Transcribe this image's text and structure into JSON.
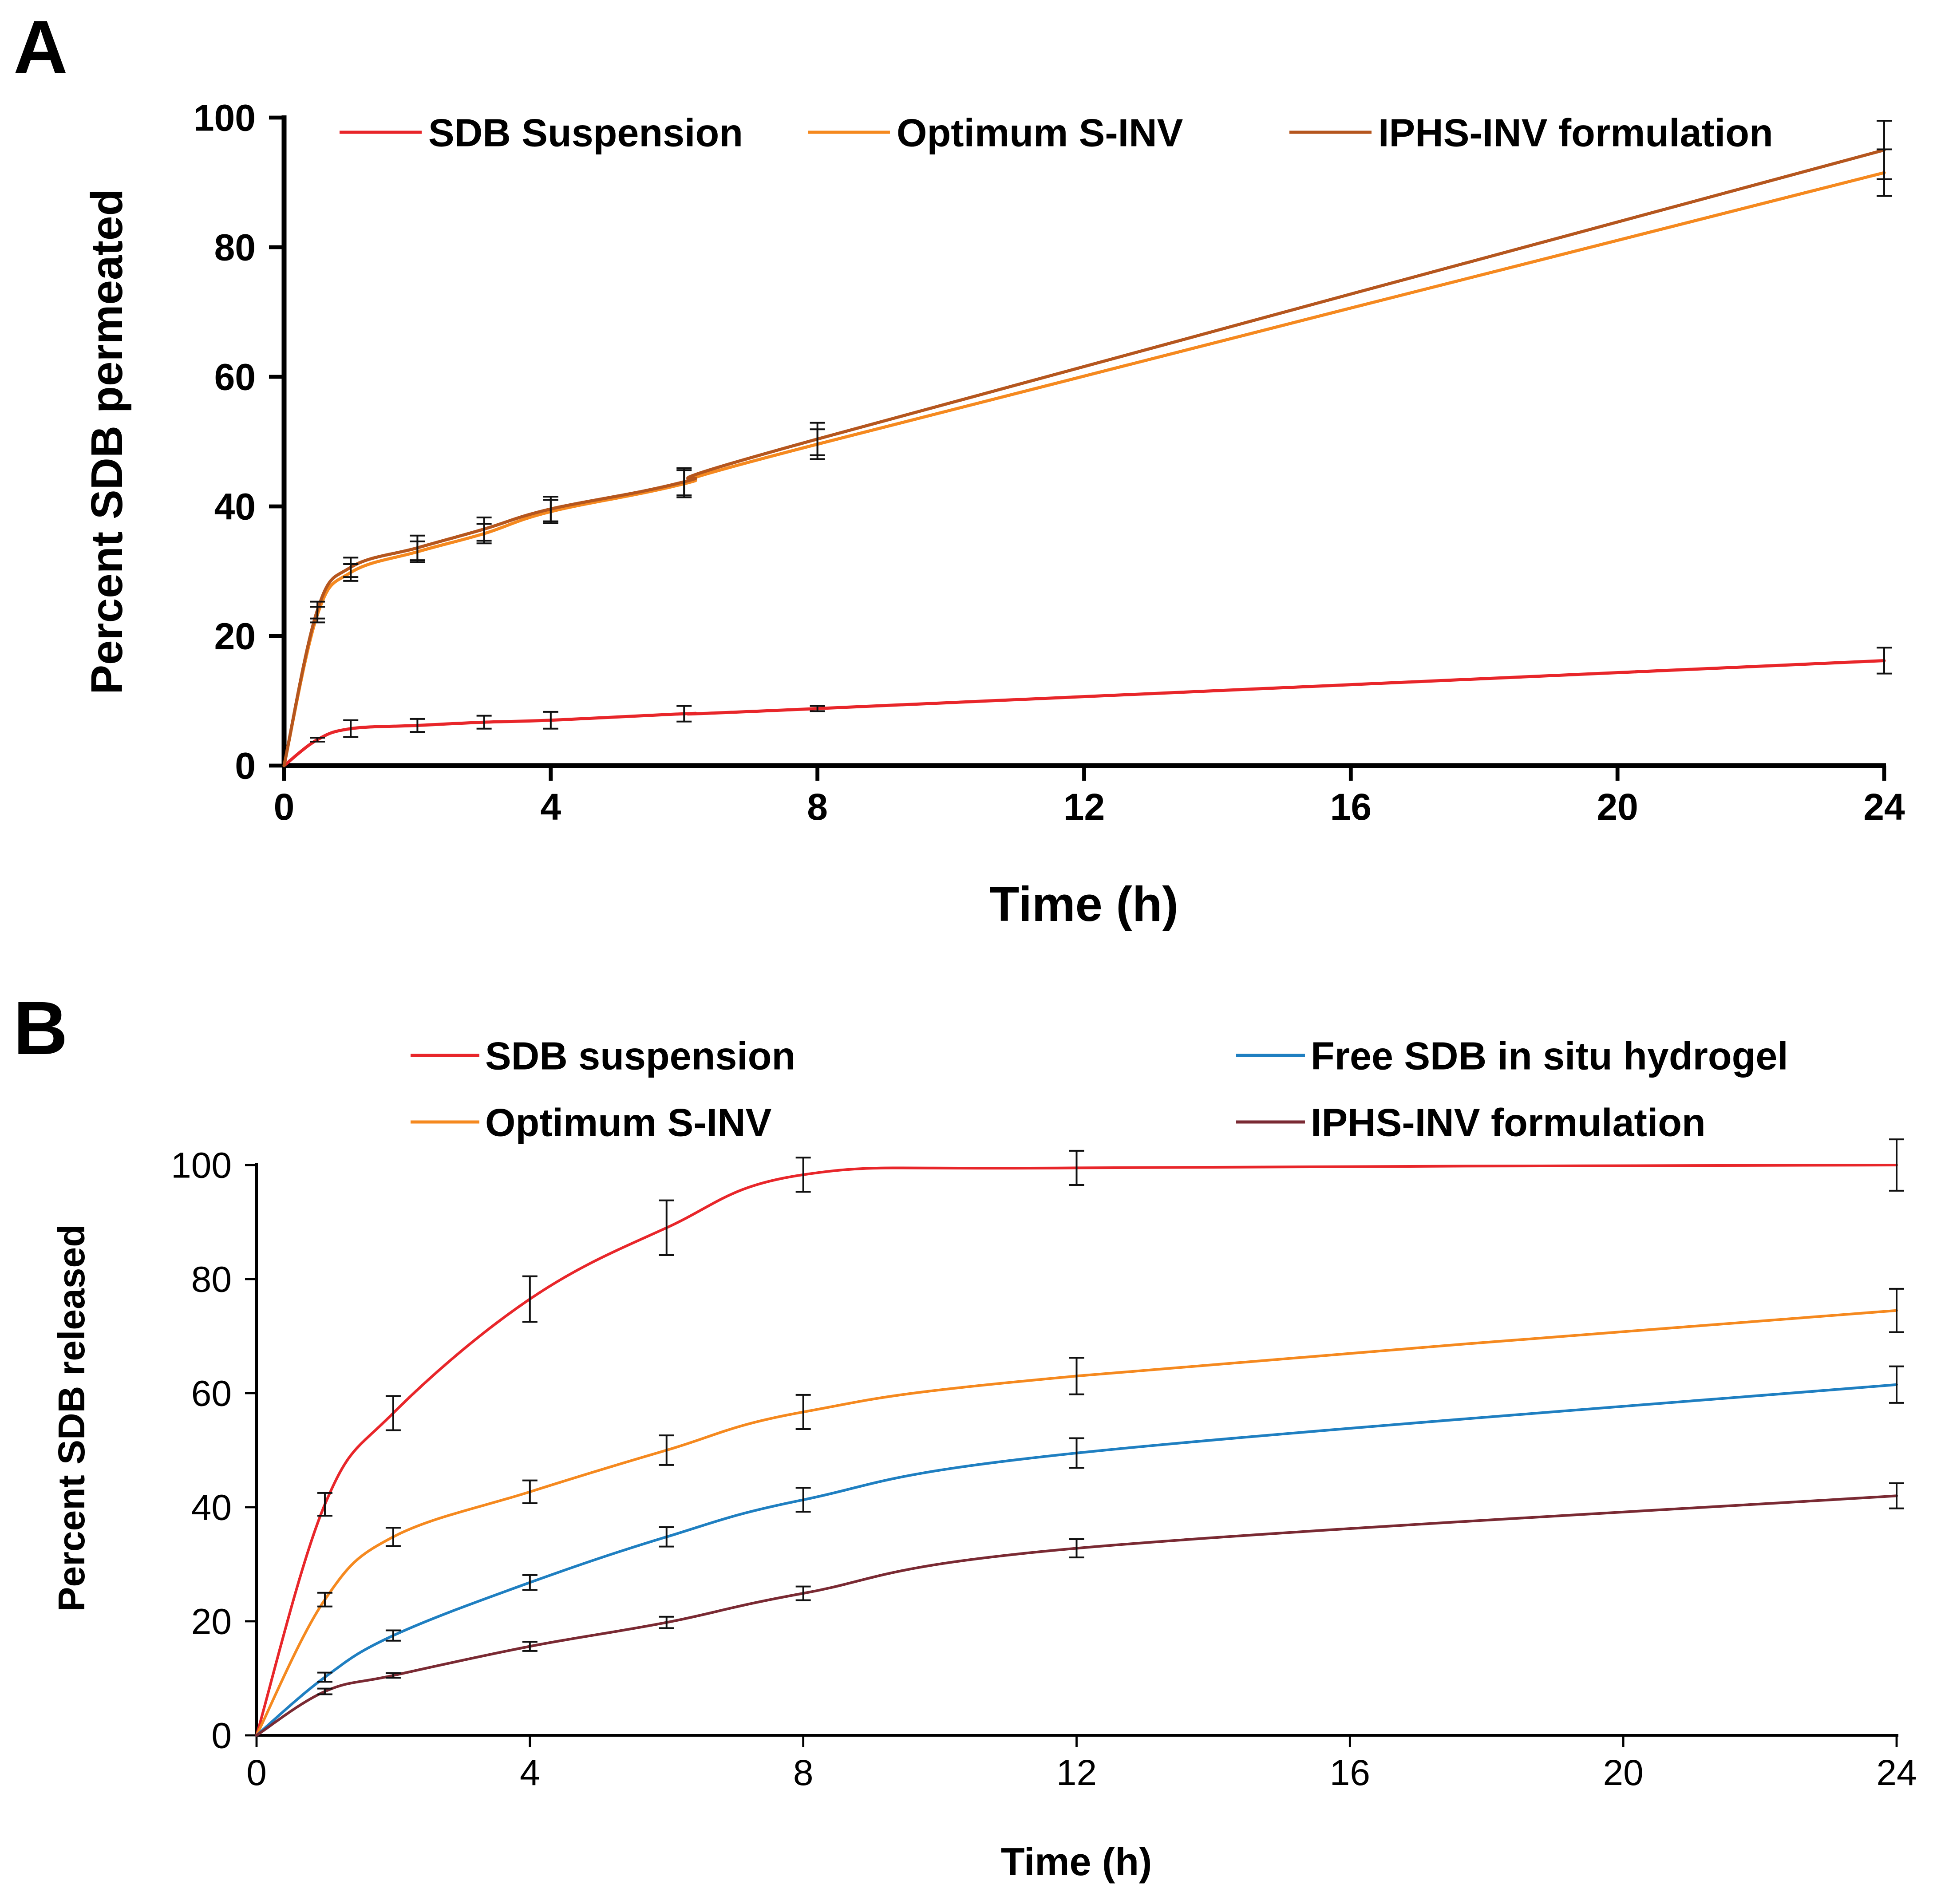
{
  "chart_data": [
    {
      "panel_label": "A",
      "type": "line",
      "title": "",
      "xlabel": "Time (h)",
      "ylabel": "Percent SDB permeated",
      "xlim": [
        0,
        24
      ],
      "ylim": [
        0,
        100
      ],
      "xticks": [
        0,
        4,
        8,
        12,
        16,
        20,
        24
      ],
      "yticks": [
        0,
        20,
        40,
        60,
        80,
        100
      ],
      "grid": false,
      "legend_position": "top",
      "series": [
        {
          "name": "SDB Suspension",
          "color": "#e8262a",
          "x": [
            0,
            0.5,
            1,
            2,
            3,
            4,
            6,
            8,
            24
          ],
          "y": [
            0,
            4.0,
            5.7,
            6.2,
            6.7,
            7.0,
            8.0,
            8.8,
            16.2
          ],
          "err": [
            0,
            0.3,
            1.3,
            1.0,
            1.0,
            1.3,
            1.2,
            0.4,
            2.0
          ]
        },
        {
          "name": "Optimum S-INV",
          "color": "#f5891f",
          "x": [
            0,
            0.5,
            1,
            2,
            3,
            4,
            6,
            8,
            24
          ],
          "y": [
            0,
            23.3,
            29.8,
            33.0,
            35.8,
            39.2,
            43.5,
            49.6,
            91.5
          ],
          "err": [
            0,
            1.2,
            1.3,
            1.6,
            1.5,
            1.8,
            2.1,
            2.3,
            3.6
          ]
        },
        {
          "name": "IPHS-INV formulation",
          "color": "#b5561e",
          "x": [
            0,
            0.5,
            1,
            2,
            3,
            4,
            6,
            8,
            24
          ],
          "y": [
            0,
            24.0,
            30.6,
            33.6,
            36.5,
            39.6,
            43.8,
            50.4,
            95.0
          ],
          "err": [
            0,
            1.3,
            1.5,
            1.9,
            1.8,
            1.9,
            2.1,
            2.5,
            4.5
          ]
        }
      ]
    },
    {
      "panel_label": "B",
      "type": "line",
      "title": "",
      "xlabel": "Time (h)",
      "ylabel": "Percent SDB released",
      "xlim": [
        0,
        24
      ],
      "ylim": [
        0,
        100
      ],
      "xticks": [
        0,
        4,
        8,
        12,
        16,
        20,
        24
      ],
      "yticks": [
        0,
        20,
        40,
        60,
        80,
        100
      ],
      "grid": false,
      "legend_position": "top",
      "series": [
        {
          "name": "SDB suspension",
          "color": "#e8262a",
          "x": [
            0,
            1,
            2,
            4,
            6,
            8,
            12,
            24
          ],
          "y": [
            0,
            40.5,
            56.5,
            76.5,
            89.0,
            98.3,
            99.5,
            100.0
          ],
          "err": [
            0,
            2.0,
            3.0,
            4.0,
            4.8,
            3.0,
            3.0,
            4.5
          ]
        },
        {
          "name": "Optimum S-INV",
          "color": "#f5891f",
          "x": [
            0,
            1,
            2,
            4,
            6,
            8,
            12,
            24
          ],
          "y": [
            0,
            23.8,
            34.8,
            42.7,
            50.0,
            56.7,
            63.0,
            74.5
          ],
          "err": [
            0,
            1.2,
            1.6,
            2.0,
            2.6,
            3.0,
            3.2,
            3.8
          ]
        },
        {
          "name": "Free SDB in situ hydrogel",
          "color": "#1f7fc1",
          "x": [
            0,
            1,
            2,
            4,
            6,
            8,
            12,
            24
          ],
          "y": [
            0,
            10.2,
            17.5,
            26.8,
            34.8,
            41.3,
            49.5,
            61.5
          ],
          "err": [
            0,
            0.8,
            0.9,
            1.3,
            1.7,
            2.1,
            2.6,
            3.2
          ]
        },
        {
          "name": "IPHS-INV formulation",
          "color": "#7a2a33",
          "x": [
            0,
            1,
            2,
            4,
            6,
            8,
            12,
            24
          ],
          "y": [
            0,
            7.7,
            10.5,
            15.6,
            19.8,
            24.9,
            32.8,
            42.0
          ],
          "err": [
            0,
            0.5,
            0.4,
            0.8,
            1.0,
            1.2,
            1.6,
            2.2
          ]
        }
      ]
    }
  ]
}
